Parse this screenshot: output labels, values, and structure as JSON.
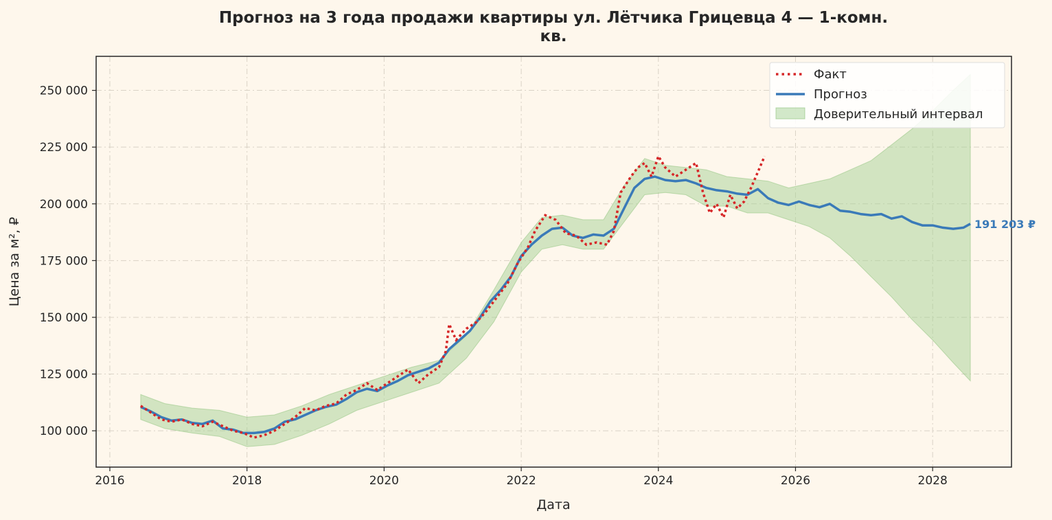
{
  "chart_data": {
    "type": "line",
    "title_line1": "Прогноз на 3 года продажи квартиры  ул. Лётчика Грицевца 4 — 1-комн.",
    "title_line2": "кв.",
    "xlabel": "Дата",
    "ylabel": "Цена за м², ₽",
    "xlim": [
      2015.8,
      2029.15
    ],
    "ylim": [
      84000,
      265000
    ],
    "x_ticks": [
      2016,
      2018,
      2020,
      2022,
      2024,
      2026,
      2028
    ],
    "x_tick_labels": [
      "2016",
      "2018",
      "2020",
      "2022",
      "2024",
      "2026",
      "2028"
    ],
    "y_ticks": [
      100000,
      125000,
      150000,
      175000,
      200000,
      225000,
      250000
    ],
    "y_tick_labels": [
      "100 000",
      "125 000",
      "150 000",
      "175 000",
      "200 000",
      "225 000",
      "250 000"
    ],
    "grid": true,
    "legend_position": "top-right",
    "legend": [
      "Факт",
      "Прогноз",
      "Доверительный интервал"
    ],
    "end_label": "191 203 ₽",
    "colors": {
      "fact": "#d62728",
      "forecast": "#3a7ab8",
      "interval": "#a6d196",
      "background": "#fef7ec"
    },
    "series": [
      {
        "name": "Факт",
        "x": [
          2016.45,
          2016.6,
          2016.75,
          2016.9,
          2017.05,
          2017.2,
          2017.35,
          2017.5,
          2017.65,
          2017.8,
          2017.95,
          2018.1,
          2018.25,
          2018.4,
          2018.55,
          2018.7,
          2018.85,
          2019.0,
          2019.15,
          2019.3,
          2019.45,
          2019.6,
          2019.75,
          2019.9,
          2020.05,
          2020.2,
          2020.35,
          2020.5,
          2020.65,
          2020.8,
          2020.9,
          2020.95,
          2021.05,
          2021.2,
          2021.35,
          2021.5,
          2021.65,
          2021.8,
          2021.95,
          2022.1,
          2022.2,
          2022.35,
          2022.5,
          2022.65,
          2022.8,
          2022.95,
          2023.1,
          2023.25,
          2023.35,
          2023.45,
          2023.6,
          2023.7,
          2023.8,
          2023.9,
          2024.0,
          2024.1,
          2024.25,
          2024.4,
          2024.55,
          2024.65,
          2024.75,
          2024.85,
          2024.95,
          2025.05,
          2025.15,
          2025.25,
          2025.35,
          2025.45,
          2025.55
        ],
        "values": [
          111000,
          108000,
          105000,
          104000,
          105000,
          103000,
          102000,
          104000,
          102000,
          100000,
          99000,
          97000,
          98000,
          100000,
          103000,
          106000,
          110000,
          109000,
          111000,
          112000,
          116000,
          118000,
          121000,
          118000,
          121000,
          124000,
          127000,
          121000,
          125000,
          128000,
          135000,
          147000,
          140000,
          145000,
          148000,
          153000,
          159000,
          165000,
          174000,
          181000,
          188000,
          195000,
          193000,
          187000,
          186000,
          182000,
          183000,
          182000,
          188000,
          205000,
          212000,
          216000,
          218000,
          212000,
          221000,
          216000,
          212000,
          215000,
          218000,
          205000,
          196000,
          200000,
          194000,
          204000,
          198000,
          201000,
          207000,
          214000,
          221000
        ]
      },
      {
        "name": "Прогноз",
        "x": [
          2016.45,
          2016.6,
          2016.75,
          2016.9,
          2017.05,
          2017.2,
          2017.35,
          2017.5,
          2017.65,
          2017.8,
          2017.95,
          2018.1,
          2018.25,
          2018.4,
          2018.55,
          2018.7,
          2018.85,
          2019.0,
          2019.15,
          2019.3,
          2019.45,
          2019.6,
          2019.75,
          2019.9,
          2020.05,
          2020.2,
          2020.35,
          2020.5,
          2020.65,
          2020.8,
          2020.95,
          2021.1,
          2021.25,
          2021.4,
          2021.55,
          2021.7,
          2021.85,
          2022.0,
          2022.15,
          2022.3,
          2022.45,
          2022.6,
          2022.75,
          2022.9,
          2023.05,
          2023.2,
          2023.35,
          2023.5,
          2023.65,
          2023.8,
          2023.95,
          2024.1,
          2024.25,
          2024.4,
          2024.55,
          2024.7,
          2024.85,
          2025.0,
          2025.15,
          2025.3,
          2025.45,
          2025.6,
          2025.75,
          2025.9,
          2026.05,
          2026.2,
          2026.35,
          2026.5,
          2026.65,
          2026.8,
          2026.95,
          2027.1,
          2027.25,
          2027.4,
          2027.55,
          2027.7,
          2027.85,
          2028.0,
          2028.15,
          2028.3,
          2028.45,
          2028.55
        ],
        "values": [
          110500,
          108500,
          106000,
          104500,
          105000,
          103500,
          103000,
          104500,
          101000,
          100500,
          99000,
          99000,
          99500,
          101000,
          104000,
          105000,
          107000,
          109000,
          110500,
          111500,
          114000,
          117000,
          118500,
          117500,
          120000,
          122000,
          124500,
          126000,
          127500,
          130000,
          136000,
          140000,
          144000,
          150000,
          157000,
          162000,
          168000,
          177000,
          182000,
          186000,
          189000,
          189500,
          186000,
          185000,
          186500,
          186000,
          189000,
          198000,
          207000,
          211000,
          212000,
          210500,
          210000,
          210500,
          209000,
          207000,
          206000,
          205500,
          204500,
          204000,
          206500,
          202500,
          200500,
          199500,
          201000,
          199500,
          198500,
          200000,
          197000,
          196500,
          195500,
          195000,
          195500,
          193500,
          194500,
          192000,
          190500,
          190500,
          189500,
          189000,
          189500,
          191203
        ]
      },
      {
        "name": "Доверительный интервал",
        "x": [
          2016.45,
          2016.8,
          2017.2,
          2017.6,
          2018.0,
          2018.4,
          2018.8,
          2019.2,
          2019.6,
          2020.0,
          2020.4,
          2020.8,
          2021.2,
          2021.6,
          2022.0,
          2022.3,
          2022.6,
          2022.9,
          2023.2,
          2023.5,
          2023.8,
          2024.1,
          2024.4,
          2024.7,
          2025.0,
          2025.3,
          2025.6,
          2025.9,
          2026.2,
          2026.5,
          2026.8,
          2027.1,
          2027.4,
          2027.7,
          2028.0,
          2028.3,
          2028.55
        ],
        "lower": [
          105000,
          101000,
          99000,
          97500,
          93000,
          94000,
          98000,
          103000,
          109000,
          113000,
          117000,
          121000,
          132000,
          148000,
          170000,
          180000,
          182000,
          180000,
          180000,
          192000,
          204000,
          205000,
          204000,
          199000,
          199000,
          196000,
          196000,
          193000,
          190000,
          185000,
          177000,
          168000,
          159000,
          149000,
          140000,
          130000,
          122000
        ],
        "upper": [
          116000,
          112000,
          110000,
          109000,
          106000,
          107000,
          111000,
          116000,
          120000,
          124000,
          128000,
          131000,
          142000,
          162000,
          183000,
          194000,
          195000,
          193000,
          193000,
          208000,
          220000,
          217000,
          216000,
          215000,
          212000,
          211000,
          210000,
          207000,
          209000,
          211000,
          215000,
          219000,
          226000,
          233000,
          241000,
          250000,
          257000
        ]
      }
    ]
  }
}
